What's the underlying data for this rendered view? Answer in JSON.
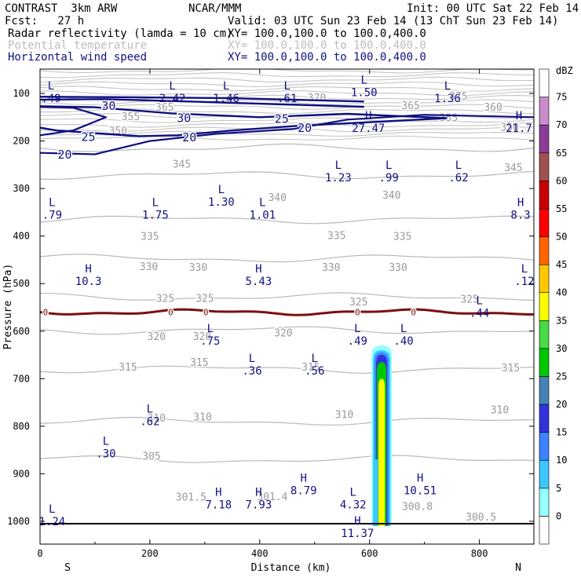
{
  "header": {
    "left_line1": "CONTRAST  3km ARW",
    "left_line2": "Fcst:   27 h",
    "center": "NCAR/MMM",
    "init": "Init: 00 UTC Sat 22 Feb 14",
    "valid": "Valid: 03 UTC Sun 23 Feb 14 (13 ChT Sun 23 Feb 14)",
    "fields": [
      {
        "name": "Radar reflectivity (lamda = 10 cm)",
        "xy": "XY= 100.0,100.0 to 100.0,400.0",
        "color": "#000000"
      },
      {
        "name": "Potential temperature",
        "xy": "XY= 100.0,100.0 to 100.0,400.0",
        "color": "#bdbdbd"
      },
      {
        "name": "Horizontal wind speed",
        "xy": "XY= 100.0,100.0 to 100.0,400.0",
        "color": "#101080"
      }
    ]
  },
  "chart_data": {
    "type": "cross-section",
    "xlabel": "Distance (km)",
    "ylabel": "Pressure (hPa)",
    "xlim": [
      0,
      900
    ],
    "ylim": [
      1050,
      50
    ],
    "x_ticks": [
      0,
      200,
      400,
      600,
      800
    ],
    "y_ticks": [
      100,
      200,
      300,
      400,
      500,
      600,
      700,
      800,
      900,
      1000
    ],
    "x_end_labels": {
      "left": "S",
      "right": "N"
    },
    "colorbar": {
      "unit": "dBZ",
      "levels": [
        0,
        5,
        10,
        15,
        20,
        25,
        30,
        35,
        40,
        45,
        50,
        55,
        60,
        65,
        70,
        75
      ],
      "colors": [
        "#ffffff",
        "#96ffff",
        "#3cc8ff",
        "#3c82ff",
        "#3232dc",
        "#4682b4",
        "#00c800",
        "#46dc46",
        "#fafa00",
        "#ffc800",
        "#ff6400",
        "#ff0000",
        "#c80000",
        "#a05050",
        "#8c3c96",
        "#c88cc8",
        "#ffffff"
      ]
    },
    "theta_contours": [
      {
        "level": 345,
        "p": 215
      },
      {
        "level": 340,
        "p": 272
      },
      {
        "level": 335,
        "p": 365
      },
      {
        "level": 330,
        "p": 447
      },
      {
        "level": 325,
        "p": 528
      },
      {
        "level": 320,
        "p": 598
      },
      {
        "level": 315,
        "p": 680
      },
      {
        "level": 310,
        "p": 790
      },
      {
        "level": 305,
        "p": 870
      }
    ],
    "theta_labels": [
      {
        "text": "355",
        "x": 165,
        "p": 148
      },
      {
        "text": "350",
        "x": 142,
        "p": 178
      },
      {
        "text": "345",
        "x": 258,
        "p": 248
      },
      {
        "text": "345",
        "x": 862,
        "p": 255
      },
      {
        "text": "340",
        "x": 432,
        "p": 318
      },
      {
        "text": "340",
        "x": 640,
        "p": 313
      },
      {
        "text": "335",
        "x": 200,
        "p": 400
      },
      {
        "text": "335",
        "x": 540,
        "p": 398
      },
      {
        "text": "335",
        "x": 660,
        "p": 400
      },
      {
        "text": "330",
        "x": 198,
        "p": 463
      },
      {
        "text": "330",
        "x": 288,
        "p": 465
      },
      {
        "text": "330",
        "x": 530,
        "p": 465
      },
      {
        "text": "330",
        "x": 652,
        "p": 465
      },
      {
        "text": "325",
        "x": 228,
        "p": 530
      },
      {
        "text": "325",
        "x": 300,
        "p": 530
      },
      {
        "text": "325",
        "x": 580,
        "p": 538
      },
      {
        "text": "325",
        "x": 782,
        "p": 532
      },
      {
        "text": "320",
        "x": 212,
        "p": 610
      },
      {
        "text": "320",
        "x": 295,
        "p": 610
      },
      {
        "text": "320",
        "x": 443,
        "p": 603
      },
      {
        "text": "315",
        "x": 160,
        "p": 675
      },
      {
        "text": "315",
        "x": 290,
        "p": 665
      },
      {
        "text": "315",
        "x": 493,
        "p": 675
      },
      {
        "text": "315",
        "x": 857,
        "p": 676
      },
      {
        "text": "310",
        "x": 212,
        "p": 782
      },
      {
        "text": "310",
        "x": 296,
        "p": 780
      },
      {
        "text": "310",
        "x": 554,
        "p": 775
      },
      {
        "text": "310",
        "x": 837,
        "p": 765
      },
      {
        "text": "305",
        "x": 203,
        "p": 862
      },
      {
        "text": "301.5",
        "x": 275,
        "p": 948
      },
      {
        "text": "301.4",
        "x": 423,
        "p": 947
      },
      {
        "text": "300.8",
        "x": 687,
        "p": 968
      },
      {
        "text": "300.5",
        "x": 803,
        "p": 990
      },
      {
        "text": "370",
        "x": 504,
        "p": 108
      },
      {
        "text": "375",
        "x": 762,
        "p": 105
      },
      {
        "text": "365",
        "x": 227,
        "p": 128
      },
      {
        "text": "365",
        "x": 675,
        "p": 125
      },
      {
        "text": "360",
        "x": 825,
        "p": 128
      },
      {
        "text": "355",
        "x": 744,
        "p": 150
      },
      {
        "text": "350",
        "x": 855,
        "p": 170
      }
    ],
    "wind_labels": [
      {
        "text": "30",
        "x": 125,
        "p": 125
      },
      {
        "text": "30",
        "x": 262,
        "p": 150
      },
      {
        "text": "25",
        "x": 88,
        "p": 190
      },
      {
        "text": "25",
        "x": 440,
        "p": 152
      },
      {
        "text": "20",
        "x": 45,
        "p": 227
      },
      {
        "text": "20",
        "x": 272,
        "p": 191
      },
      {
        "text": "20",
        "x": 482,
        "p": 171
      }
    ],
    "freezing_level": {
      "label": "0",
      "p_mean": 560
    },
    "extrema": [
      {
        "type": "L",
        "value": ".49",
        "x": 20,
        "p": 95
      },
      {
        "type": "L",
        "value": "2.42",
        "x": 241,
        "p": 95
      },
      {
        "type": "L",
        "value": "1.46",
        "x": 339,
        "p": 95
      },
      {
        "type": "L",
        "value": ".61",
        "x": 450,
        "p": 95
      },
      {
        "type": "L",
        "value": "1.50",
        "x": 590,
        "p": 83
      },
      {
        "type": "L",
        "value": "1.36",
        "x": 742,
        "p": 95
      },
      {
        "type": "H",
        "value": "27.47",
        "x": 598,
        "p": 158
      },
      {
        "type": "H",
        "value": "21.7",
        "x": 872,
        "p": 158
      },
      {
        "type": "L",
        "value": "1.23",
        "x": 543,
        "p": 262
      },
      {
        "type": "L",
        "value": ".99",
        "x": 635,
        "p": 262
      },
      {
        "type": "L",
        "value": ".62",
        "x": 762,
        "p": 262
      },
      {
        "type": "L",
        "value": "1.30",
        "x": 330,
        "p": 313
      },
      {
        "type": "L",
        "value": ".79",
        "x": 22,
        "p": 340
      },
      {
        "type": "L",
        "value": "1.75",
        "x": 210,
        "p": 340
      },
      {
        "type": "L",
        "value": "1.01",
        "x": 405,
        "p": 340
      },
      {
        "type": "H",
        "value": "8.3",
        "x": 875,
        "p": 340
      },
      {
        "type": "H",
        "value": "10.3",
        "x": 88,
        "p": 480
      },
      {
        "type": "H",
        "value": "5.43",
        "x": 398,
        "p": 480
      },
      {
        "type": "L",
        "value": ".12",
        "x": 882,
        "p": 480
      },
      {
        "type": "L",
        "value": ".44",
        "x": 800,
        "p": 547
      },
      {
        "type": "L",
        "value": ".75",
        "x": 310,
        "p": 605
      },
      {
        "type": "L",
        "value": ".49",
        "x": 578,
        "p": 605
      },
      {
        "type": "L",
        "value": ".40",
        "x": 662,
        "p": 605
      },
      {
        "type": "L",
        "value": ".36",
        "x": 386,
        "p": 668
      },
      {
        "type": "L",
        "value": ".56",
        "x": 500,
        "p": 668
      },
      {
        "type": "L",
        "value": ".62",
        "x": 200,
        "p": 775
      },
      {
        "type": "L",
        "value": ".30",
        "x": 120,
        "p": 842
      },
      {
        "type": "H",
        "value": "8.79",
        "x": 480,
        "p": 920
      },
      {
        "type": "H",
        "value": "10.51",
        "x": 692,
        "p": 920
      },
      {
        "type": "H",
        "value": "7.18",
        "x": 325,
        "p": 950
      },
      {
        "type": "H",
        "value": "7.93",
        "x": 398,
        "p": 950
      },
      {
        "type": "L",
        "value": "4.32",
        "x": 570,
        "p": 950
      },
      {
        "type": "L",
        "value": "1.24",
        "x": 22,
        "p": 985
      },
      {
        "type": "H",
        "value": "11.37",
        "x": 578,
        "p": 1010
      }
    ]
  }
}
